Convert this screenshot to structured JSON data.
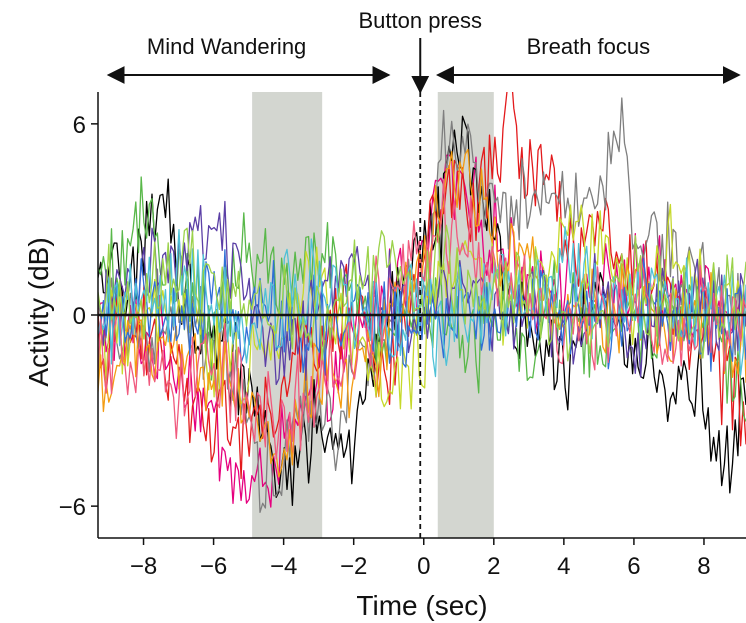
{
  "chart_data": {
    "type": "line",
    "xlabel": "Time (sec)",
    "ylabel": "Activity (dB)",
    "xlim": [
      -9.3,
      9.2
    ],
    "ylim": [
      -7,
      7
    ],
    "xticks": [
      -8,
      -6,
      -4,
      -2,
      0,
      2,
      4,
      6,
      8
    ],
    "xtick_labels": [
      "−8",
      "−6",
      "−4",
      "−2",
      "0",
      "2",
      "4",
      "6",
      "8"
    ],
    "yticks": [
      -6,
      0,
      6
    ],
    "ytick_labels": [
      "−6",
      "0",
      "6"
    ],
    "grid": false,
    "shaded_regions": [
      {
        "x": [
          -4.9,
          -2.9
        ],
        "color": "#d3d6d0"
      },
      {
        "x": [
          0.4,
          2.0
        ],
        "color": "#d3d6d0"
      }
    ],
    "zero_line": {
      "y": 0,
      "color": "#111111"
    },
    "event_line": {
      "x": -0.1,
      "style": "dashed",
      "color": "#111111"
    },
    "annotations": {
      "button_press": {
        "text": "Button press",
        "x": -0.1
      },
      "mind_wandering": {
        "text": "Mind Wandering",
        "from": -9.0,
        "to": -1.0
      },
      "breath_focus": {
        "text": "Breath focus",
        "from": 0.4,
        "to": 9.0
      }
    },
    "series_colors": [
      "#e6007e",
      "#000000",
      "#e31a1c",
      "#7f7f7f",
      "#59b84a",
      "#c6d92b",
      "#f39c12",
      "#5b3fa6",
      "#2f6fd6",
      "#4fc1d6",
      "#f05a7e",
      "#9bd24a"
    ],
    "series": [
      {
        "x": [
          -9.3,
          -8,
          -7,
          -6,
          -5,
          -4,
          -3,
          -2,
          -1,
          0,
          0.5,
          1,
          1.5,
          2,
          3,
          4,
          5,
          6,
          7,
          8,
          9.2
        ],
        "values": [
          0,
          -0.8,
          -1.5,
          -3.5,
          -5.8,
          -4.2,
          -2.5,
          -1,
          0.8,
          1.5,
          4.5,
          4,
          3.2,
          2.5,
          1,
          1.5,
          0.5,
          1.2,
          0.5,
          1,
          0.3
        ],
        "color": "#e6007e"
      },
      {
        "x": [
          -9.3,
          -8,
          -7.3,
          -7,
          -6,
          -5,
          -4,
          -3,
          -2,
          -1,
          0,
          0.5,
          1,
          1.5,
          2,
          3,
          4,
          5,
          6,
          7,
          8,
          8.5,
          9.2
        ],
        "values": [
          0.5,
          2,
          3.8,
          1,
          -1,
          -2,
          -5,
          -3.5,
          -4.5,
          0.5,
          2.5,
          3,
          6.2,
          4,
          2,
          -1,
          -1.5,
          0.5,
          -1,
          -2,
          -2.5,
          -5.3,
          -3
        ],
        "color": "#000000"
      },
      {
        "x": [
          -9.3,
          -8,
          -7,
          -6,
          -5,
          -4,
          -3,
          -2,
          -1,
          0,
          0.5,
          1,
          1.5,
          2,
          2.5,
          3,
          3.5,
          4,
          5,
          6,
          7,
          8,
          9.2
        ],
        "values": [
          -1,
          -0.5,
          -2,
          -3,
          -4,
          -2,
          -1,
          0.5,
          -2,
          1.5,
          3,
          4.5,
          3,
          5,
          6.5,
          4,
          5.5,
          2,
          3,
          1,
          0.5,
          -0.5,
          -3.5
        ],
        "color": "#e31a1c"
      },
      {
        "x": [
          -9.3,
          -8,
          -7,
          -6,
          -5,
          -4.5,
          -4,
          -3,
          -2.5,
          -2,
          -1,
          0,
          0.5,
          1,
          2,
          3,
          4,
          5,
          5.5,
          6,
          7,
          8,
          9.2
        ],
        "values": [
          0,
          -0.5,
          0.5,
          -1,
          -3,
          -5.5,
          -4,
          -2,
          -4.5,
          -1,
          0,
          1,
          5,
          5.5,
          3,
          3.5,
          4,
          3,
          6.5,
          3,
          2,
          1,
          0
        ],
        "color": "#7f7f7f"
      },
      {
        "x": [
          -9.3,
          -8,
          -7,
          -6,
          -5,
          -4,
          -3,
          -2,
          -1,
          0,
          0.5,
          1,
          2,
          3,
          4,
          5,
          6,
          7,
          8,
          9.2
        ],
        "values": [
          0.5,
          3,
          1,
          -0.5,
          2,
          1,
          2.5,
          0.5,
          -1,
          0,
          0.5,
          -1,
          -0.5,
          -1,
          0.5,
          -1,
          -0.5,
          0,
          0.5,
          -2.5
        ],
        "color": "#59b84a"
      },
      {
        "x": [
          -9.3,
          -8,
          -7,
          -6,
          -5,
          -4,
          -3,
          -2,
          -1,
          0,
          0.5,
          1,
          2,
          3,
          4,
          5,
          6,
          7,
          8,
          9.2
        ],
        "values": [
          -1,
          -0.5,
          0,
          -1,
          -1.5,
          0,
          1,
          -0.5,
          -2.5,
          -1,
          1,
          2,
          0.5,
          1,
          2.5,
          2,
          0.5,
          2,
          1,
          0.5
        ],
        "color": "#c6d92b"
      },
      {
        "x": [
          -9.3,
          -8,
          -7,
          -6,
          -5,
          -4,
          -3,
          -2,
          -1,
          0,
          0.5,
          1,
          1.5,
          2,
          3,
          4,
          5,
          6,
          7,
          8,
          9.2
        ],
        "values": [
          -2,
          -1.5,
          -1,
          -2,
          -3,
          -4,
          -1.5,
          -2,
          -0.5,
          1.5,
          4,
          4.5,
          3.5,
          2.5,
          1.5,
          0.5,
          0,
          0.5,
          -0.5,
          0,
          -1
        ],
        "color": "#f39c12"
      },
      {
        "x": [
          -9.3,
          -8,
          -7,
          -6,
          -5,
          -4,
          -3,
          -2,
          -1,
          0,
          0.5,
          1,
          2,
          3,
          4,
          5,
          6,
          7,
          8,
          9.2
        ],
        "values": [
          0.5,
          1.5,
          2,
          2.5,
          1,
          -1,
          0,
          1.5,
          0.5,
          -0.5,
          0.5,
          1,
          0,
          0.5,
          -0.5,
          0.5,
          -0.5,
          0.5,
          0,
          0.3
        ],
        "color": "#5b3fa6"
      },
      {
        "x": [
          -9.3,
          -8,
          -7,
          -6,
          -5,
          -4,
          -3,
          -2,
          -1,
          0,
          0.5,
          1,
          2,
          3,
          4,
          5,
          6,
          7,
          8,
          9.2
        ],
        "values": [
          0,
          0.5,
          -0.5,
          0.8,
          -0.3,
          0.5,
          -0.5,
          0.3,
          -0.2,
          0.4,
          0,
          0.5,
          -0.5,
          0.3,
          0,
          -0.3,
          0.5,
          0,
          -0.2,
          0
        ],
        "color": "#2f6fd6"
      },
      {
        "x": [
          -9.3,
          -8,
          -7,
          -6,
          -5,
          -4,
          -3,
          -2,
          -1,
          0,
          0.5,
          1,
          2,
          3,
          4,
          5,
          6,
          7,
          8,
          9.2
        ],
        "values": [
          -0.5,
          0.5,
          1,
          0,
          -0.5,
          0.5,
          1,
          0,
          -0.5,
          0.5,
          -1,
          0,
          1,
          0.5,
          1.5,
          0.5,
          1,
          0,
          0.5,
          -0.5
        ],
        "color": "#4fc1d6"
      },
      {
        "x": [
          -9.3,
          -8,
          -7,
          -6,
          -5,
          -4,
          -3,
          -2,
          -1,
          0,
          0.5,
          1,
          2,
          3,
          4,
          5,
          6,
          7,
          8,
          9.2
        ],
        "values": [
          -1,
          -2,
          -2.5,
          -1.5,
          -3,
          -3.5,
          -2,
          -1,
          1,
          2,
          3,
          2.5,
          1,
          0.5,
          -0.5,
          0,
          0.5,
          -0.5,
          0,
          -0.5
        ],
        "color": "#f05a7e"
      },
      {
        "x": [
          -9.3,
          -8,
          -7,
          -6,
          -5,
          -4,
          -3,
          -2,
          -1,
          0,
          0.5,
          1,
          2,
          3,
          4,
          5,
          6,
          7,
          8,
          9.2
        ],
        "values": [
          1,
          0.5,
          1.5,
          1,
          0,
          0.5,
          -0.5,
          1,
          2,
          0.5,
          1.5,
          1,
          0.5,
          1,
          0,
          0.5,
          1,
          0.5,
          0,
          0.5
        ],
        "color": "#9bd24a"
      }
    ]
  }
}
